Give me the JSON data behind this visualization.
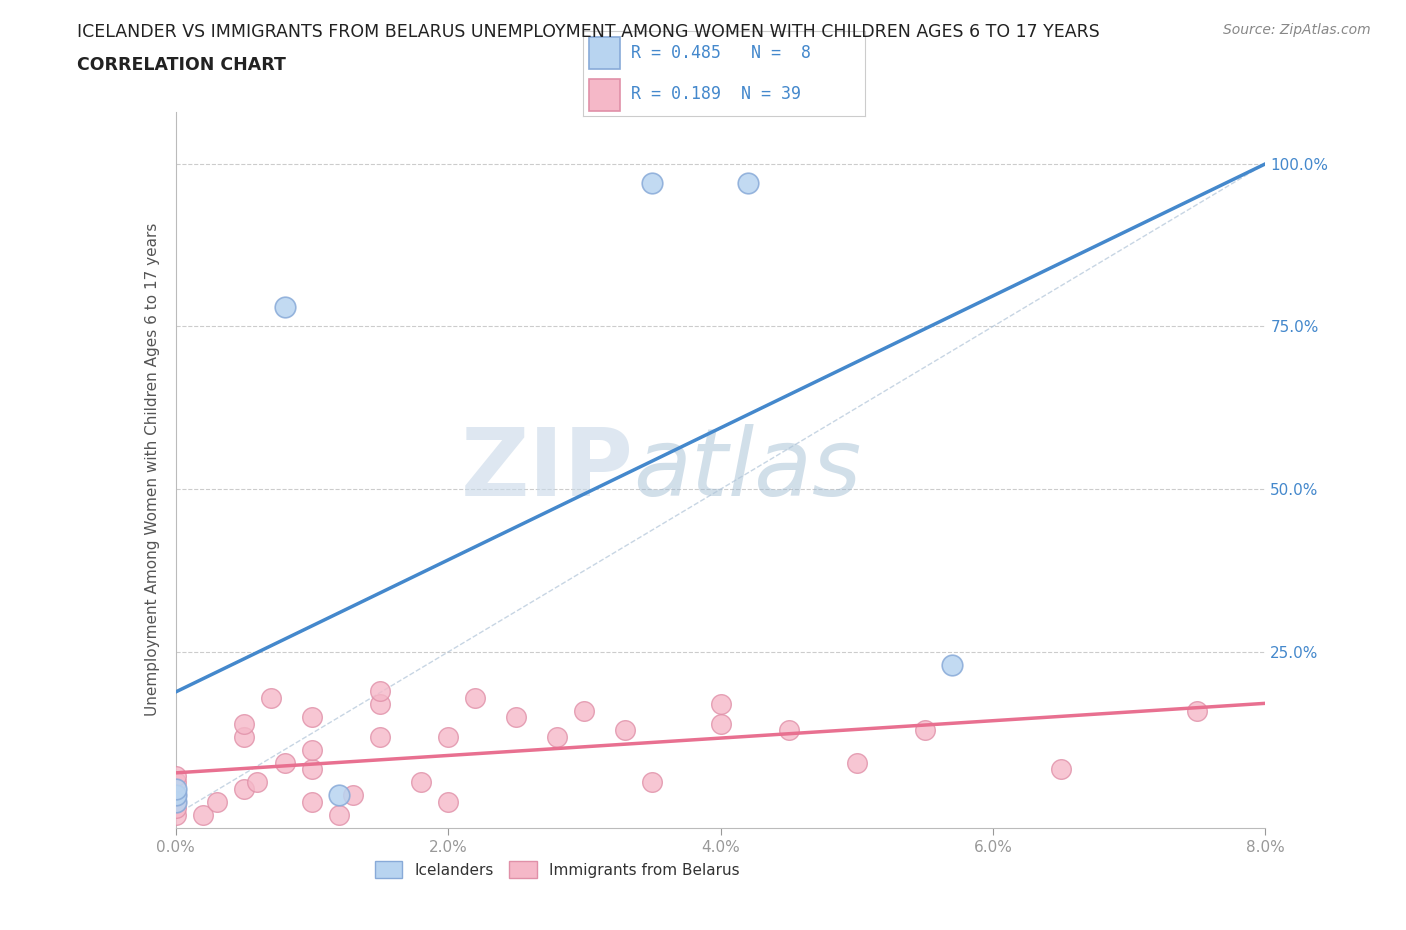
{
  "title_line1": "ICELANDER VS IMMIGRANTS FROM BELARUS UNEMPLOYMENT AMONG WOMEN WITH CHILDREN AGES 6 TO 17 YEARS",
  "title_line2": "CORRELATION CHART",
  "source_text": "Source: ZipAtlas.com",
  "ylabel": "Unemployment Among Women with Children Ages 6 to 17 years",
  "xlim": [
    0.0,
    0.08
  ],
  "ylim": [
    -0.02,
    1.08
  ],
  "xtick_labels": [
    "0.0%",
    "2.0%",
    "4.0%",
    "6.0%",
    "8.0%"
  ],
  "xtick_vals": [
    0.0,
    0.02,
    0.04,
    0.06,
    0.08
  ],
  "ytick_labels": [
    "25.0%",
    "50.0%",
    "75.0%",
    "100.0%"
  ],
  "ytick_vals": [
    0.25,
    0.5,
    0.75,
    1.0
  ],
  "icelander_color": "#b8d4f0",
  "icelander_edge": "#88aad8",
  "belarus_color": "#f5b8c8",
  "belarus_edge": "#e090a8",
  "trend_icelander_color": "#4488cc",
  "trend_belarus_color": "#e87090",
  "diagonal_color": "#b0c4d8",
  "R_icelander": 0.485,
  "N_icelander": 8,
  "R_belarus": 0.189,
  "N_belarus": 39,
  "legend_label_icelander": "Icelanders",
  "legend_label_belarus": "Immigrants from Belarus",
  "watermark_zip": "ZIP",
  "watermark_atlas": "atlas",
  "icelander_points": [
    [
      0.0,
      0.02
    ],
    [
      0.0,
      0.03
    ],
    [
      0.0,
      0.04
    ],
    [
      0.008,
      0.78
    ],
    [
      0.035,
      0.97
    ],
    [
      0.042,
      0.97
    ],
    [
      0.057,
      0.23
    ],
    [
      0.012,
      0.03
    ]
  ],
  "belarus_points": [
    [
      0.0,
      0.0
    ],
    [
      0.0,
      0.01
    ],
    [
      0.0,
      0.02
    ],
    [
      0.0,
      0.03
    ],
    [
      0.0,
      0.05
    ],
    [
      0.0,
      0.06
    ],
    [
      0.002,
      0.0
    ],
    [
      0.003,
      0.02
    ],
    [
      0.005,
      0.04
    ],
    [
      0.005,
      0.12
    ],
    [
      0.005,
      0.14
    ],
    [
      0.006,
      0.05
    ],
    [
      0.007,
      0.18
    ],
    [
      0.008,
      0.08
    ],
    [
      0.01,
      0.02
    ],
    [
      0.01,
      0.07
    ],
    [
      0.01,
      0.1
    ],
    [
      0.01,
      0.15
    ],
    [
      0.012,
      0.0
    ],
    [
      0.013,
      0.03
    ],
    [
      0.015,
      0.12
    ],
    [
      0.015,
      0.17
    ],
    [
      0.015,
      0.19
    ],
    [
      0.018,
      0.05
    ],
    [
      0.02,
      0.02
    ],
    [
      0.02,
      0.12
    ],
    [
      0.022,
      0.18
    ],
    [
      0.025,
      0.15
    ],
    [
      0.028,
      0.12
    ],
    [
      0.03,
      0.16
    ],
    [
      0.033,
      0.13
    ],
    [
      0.035,
      0.05
    ],
    [
      0.04,
      0.14
    ],
    [
      0.04,
      0.17
    ],
    [
      0.045,
      0.13
    ],
    [
      0.05,
      0.08
    ],
    [
      0.055,
      0.13
    ],
    [
      0.065,
      0.07
    ],
    [
      0.075,
      0.16
    ]
  ],
  "background_color": "#ffffff",
  "grid_color": "#cccccc",
  "title_color": "#222222",
  "axis_label_color": "#555555",
  "tick_color": "#4488cc"
}
